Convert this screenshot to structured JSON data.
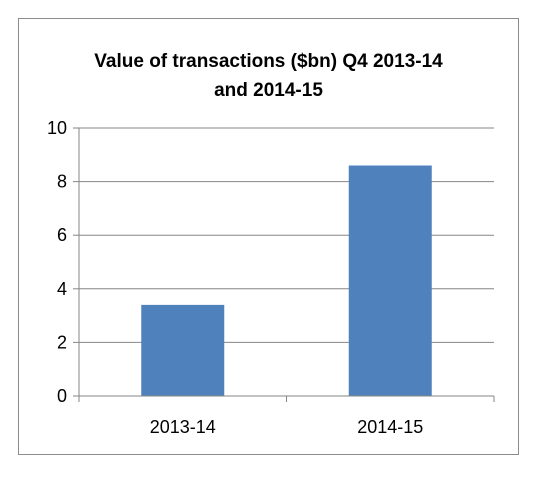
{
  "chart_data": {
    "type": "bar",
    "title_lines": [
      "Value of transactions ($bn) Q4 2013-14",
      "and 2014-15"
    ],
    "categories": [
      "2013-14",
      "2014-15"
    ],
    "values": [
      3.4,
      8.6
    ],
    "yticks": [
      "0",
      "2",
      "4",
      "6",
      "8",
      "10"
    ],
    "ylim": [
      0,
      10
    ],
    "xlabel": "",
    "ylabel": "",
    "grid": true,
    "legend": "none",
    "bar_color": "#4f81bd",
    "grid_color": "#868686"
  }
}
